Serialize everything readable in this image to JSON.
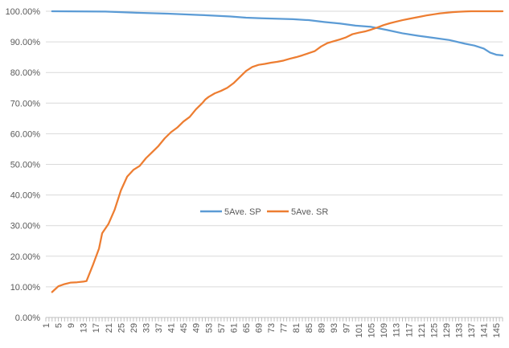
{
  "chart_data": {
    "type": "line",
    "title": "",
    "xlabel": "",
    "ylabel": "",
    "ylim": [
      0,
      100
    ],
    "xlim": [
      1,
      147
    ],
    "grid": "horizontal",
    "legend_position": "center",
    "y_ticks": [
      "0.00%",
      "10.00%",
      "20.00%",
      "30.00%",
      "40.00%",
      "50.00%",
      "60.00%",
      "70.00%",
      "80.00%",
      "90.00%",
      "100.00%"
    ],
    "x_tick_values": [
      1,
      5,
      9,
      13,
      17,
      21,
      25,
      29,
      33,
      37,
      41,
      45,
      49,
      53,
      57,
      61,
      65,
      69,
      73,
      77,
      81,
      85,
      89,
      93,
      97,
      101,
      105,
      109,
      113,
      117,
      121,
      125,
      129,
      133,
      137,
      141,
      145
    ],
    "series": [
      {
        "name": "5Ave. SP",
        "color": "#5B9BD5",
        "points": [
          [
            3,
            100
          ],
          [
            20,
            99.9
          ],
          [
            30,
            99.5
          ],
          [
            40,
            99.2
          ],
          [
            50,
            98.8
          ],
          [
            60,
            98.3
          ],
          [
            65,
            97.9
          ],
          [
            70,
            97.7
          ],
          [
            80,
            97.4
          ],
          [
            85,
            97.1
          ],
          [
            90,
            96.5
          ],
          [
            95,
            96.0
          ],
          [
            100,
            95.3
          ],
          [
            105,
            94.9
          ],
          [
            110,
            93.9
          ],
          [
            115,
            92.8
          ],
          [
            120,
            92.0
          ],
          [
            125,
            91.3
          ],
          [
            130,
            90.6
          ],
          [
            135,
            89.4
          ],
          [
            138,
            88.8
          ],
          [
            141,
            87.8
          ],
          [
            143,
            86.5
          ],
          [
            145,
            85.8
          ],
          [
            147,
            85.6
          ]
        ]
      },
      {
        "name": "5Ave. SR",
        "color": "#ED7D31",
        "points": [
          [
            3,
            8.3
          ],
          [
            5,
            10.2
          ],
          [
            7,
            10.9
          ],
          [
            9,
            11.4
          ],
          [
            11,
            11.5
          ],
          [
            13,
            11.7
          ],
          [
            14,
            11.9
          ],
          [
            16,
            17
          ],
          [
            18,
            22.5
          ],
          [
            19,
            27.5
          ],
          [
            21,
            30.5
          ],
          [
            23,
            35.2
          ],
          [
            25,
            41.5
          ],
          [
            27,
            46
          ],
          [
            29,
            48.2
          ],
          [
            31,
            49.5
          ],
          [
            33,
            52
          ],
          [
            35,
            54
          ],
          [
            37,
            56
          ],
          [
            39,
            58.5
          ],
          [
            41,
            60.5
          ],
          [
            43,
            62
          ],
          [
            45,
            64
          ],
          [
            47,
            65.5
          ],
          [
            49,
            68
          ],
          [
            51,
            70
          ],
          [
            52,
            71.2
          ],
          [
            53,
            72
          ],
          [
            55,
            73.2
          ],
          [
            57,
            74
          ],
          [
            59,
            75
          ],
          [
            61,
            76.5
          ],
          [
            63,
            78.5
          ],
          [
            65,
            80.5
          ],
          [
            67,
            81.8
          ],
          [
            69,
            82.5
          ],
          [
            71,
            82.8
          ],
          [
            73,
            83.2
          ],
          [
            75,
            83.5
          ],
          [
            77,
            83.9
          ],
          [
            79,
            84.5
          ],
          [
            81,
            85
          ],
          [
            83,
            85.6
          ],
          [
            85,
            86.3
          ],
          [
            87,
            87
          ],
          [
            89,
            88.5
          ],
          [
            91,
            89.6
          ],
          [
            93,
            90.2
          ],
          [
            95,
            90.8
          ],
          [
            97,
            91.5
          ],
          [
            99,
            92.5
          ],
          [
            101,
            93
          ],
          [
            103,
            93.4
          ],
          [
            105,
            94
          ],
          [
            107,
            94.7
          ],
          [
            109,
            95.5
          ],
          [
            111,
            96.1
          ],
          [
            113,
            96.6
          ],
          [
            115,
            97.1
          ],
          [
            117,
            97.5
          ],
          [
            119,
            97.9
          ],
          [
            121,
            98.3
          ],
          [
            123,
            98.7
          ],
          [
            125,
            99
          ],
          [
            127,
            99.3
          ],
          [
            129,
            99.5
          ],
          [
            131,
            99.7
          ],
          [
            133,
            99.85
          ],
          [
            135,
            99.95
          ],
          [
            137,
            100
          ],
          [
            147,
            100
          ]
        ]
      }
    ]
  }
}
